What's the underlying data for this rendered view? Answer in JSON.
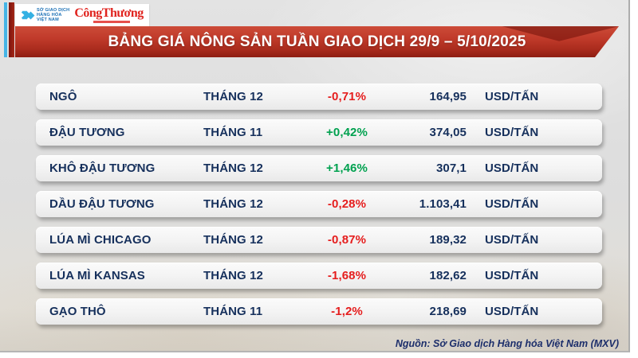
{
  "header": {
    "mxv_logo_text": "SỞ GIAO DỊCH\nHÀNG HÓA\nVIỆT NAM",
    "congthuong_logo_text": "CôngThương",
    "banner_title": "BẢNG GIÁ NÔNG SẢN TUẦN GIAO DỊCH 29/9 – 5/10/2025"
  },
  "chart_data": {
    "type": "table",
    "title": "BẢNG GIÁ NÔNG SẢN TUẦN GIAO DỊCH 29/9 – 5/10/2025",
    "rows": [
      {
        "name": "NGÔ",
        "month": "THÁNG 12",
        "change": "-0,71%",
        "direction": "down",
        "price": "164,95",
        "unit": "USD/TẤN"
      },
      {
        "name": "ĐẬU TƯƠNG",
        "month": "THÁNG 11",
        "change": "+0,42%",
        "direction": "up",
        "price": "374,05",
        "unit": "USD/TẤN"
      },
      {
        "name": "KHÔ ĐẬU TƯƠNG",
        "month": "THÁNG 12",
        "change": "+1,46%",
        "direction": "up",
        "price": "307,1",
        "unit": "USD/TẤN"
      },
      {
        "name": "DẦU ĐẬU TƯƠNG",
        "month": "THÁNG 12",
        "change": "-0,28%",
        "direction": "down",
        "price": "1.103,41",
        "unit": "USD/TẤN"
      },
      {
        "name": "LÚA MÌ CHICAGO",
        "month": "THÁNG 12",
        "change": "-0,87%",
        "direction": "down",
        "price": "189,32",
        "unit": "USD/TẤN"
      },
      {
        "name": "LÚA MÌ KANSAS",
        "month": "THÁNG 12",
        "change": "-1,68%",
        "direction": "down",
        "price": "182,62",
        "unit": "USD/TẤN"
      },
      {
        "name": "GẠO THÔ",
        "month": "THÁNG 11",
        "change": "-1,2%",
        "direction": "down",
        "price": "218,69",
        "unit": "USD/TẤN"
      }
    ]
  },
  "footer": {
    "source": "Nguồn: Sở Giao dịch Hàng hóa Việt Nam (MXV)"
  },
  "colors": {
    "banner_red": "#b93a2a",
    "navy_text": "#16305c",
    "up_green": "#00a14f",
    "down_red": "#e51d1d",
    "logo_blue": "#35b1e3",
    "congthuong_red": "#e0231e",
    "accent_bar_blue": "#45b4e6",
    "accent_bar_red": "#8e1d12"
  }
}
